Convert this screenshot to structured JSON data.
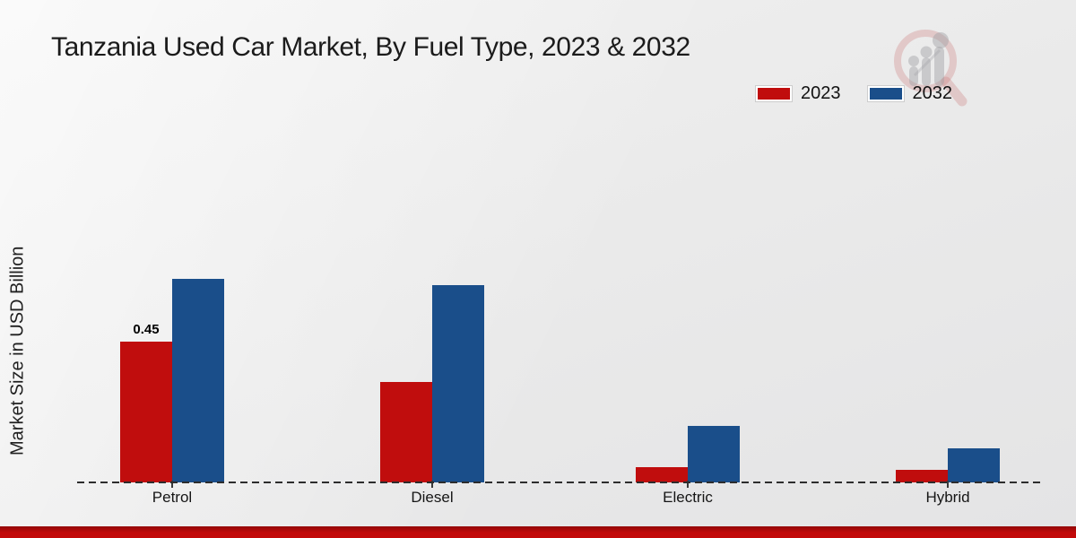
{
  "header": {
    "title": "Tanzania Used Car Market, By Fuel Type, 2023 & 2032"
  },
  "legend": {
    "items": [
      {
        "label": "2023",
        "color": "#c00d0d"
      },
      {
        "label": "2032",
        "color": "#1a4e8a"
      }
    ]
  },
  "watermark": {
    "ring_color": "rgba(203,118,118,0.30)",
    "bars_color": "rgba(160,160,165,0.45)"
  },
  "footer": {
    "color": "#c20909"
  },
  "chart_data": {
    "type": "bar",
    "categories": [
      "Petrol",
      "Diesel",
      "Electric",
      "Hybrid"
    ],
    "series": [
      {
        "name": "2023",
        "color": "#c00d0d",
        "values": [
          0.45,
          0.32,
          0.05,
          0.04
        ]
      },
      {
        "name": "2032",
        "color": "#1a4e8a",
        "values": [
          0.65,
          0.63,
          0.18,
          0.11
        ]
      }
    ],
    "title": "Tanzania Used Car Market, By Fuel Type, 2023 & 2032",
    "xlabel": "",
    "ylabel": "Market Size in USD Billion",
    "ylim": [
      0,
      0.72
    ],
    "grid": false,
    "legend_position": "top-right",
    "baseline_style": "dashed",
    "data_labels": [
      {
        "series": "2023",
        "category": "Petrol",
        "text": "0.45"
      }
    ]
  }
}
